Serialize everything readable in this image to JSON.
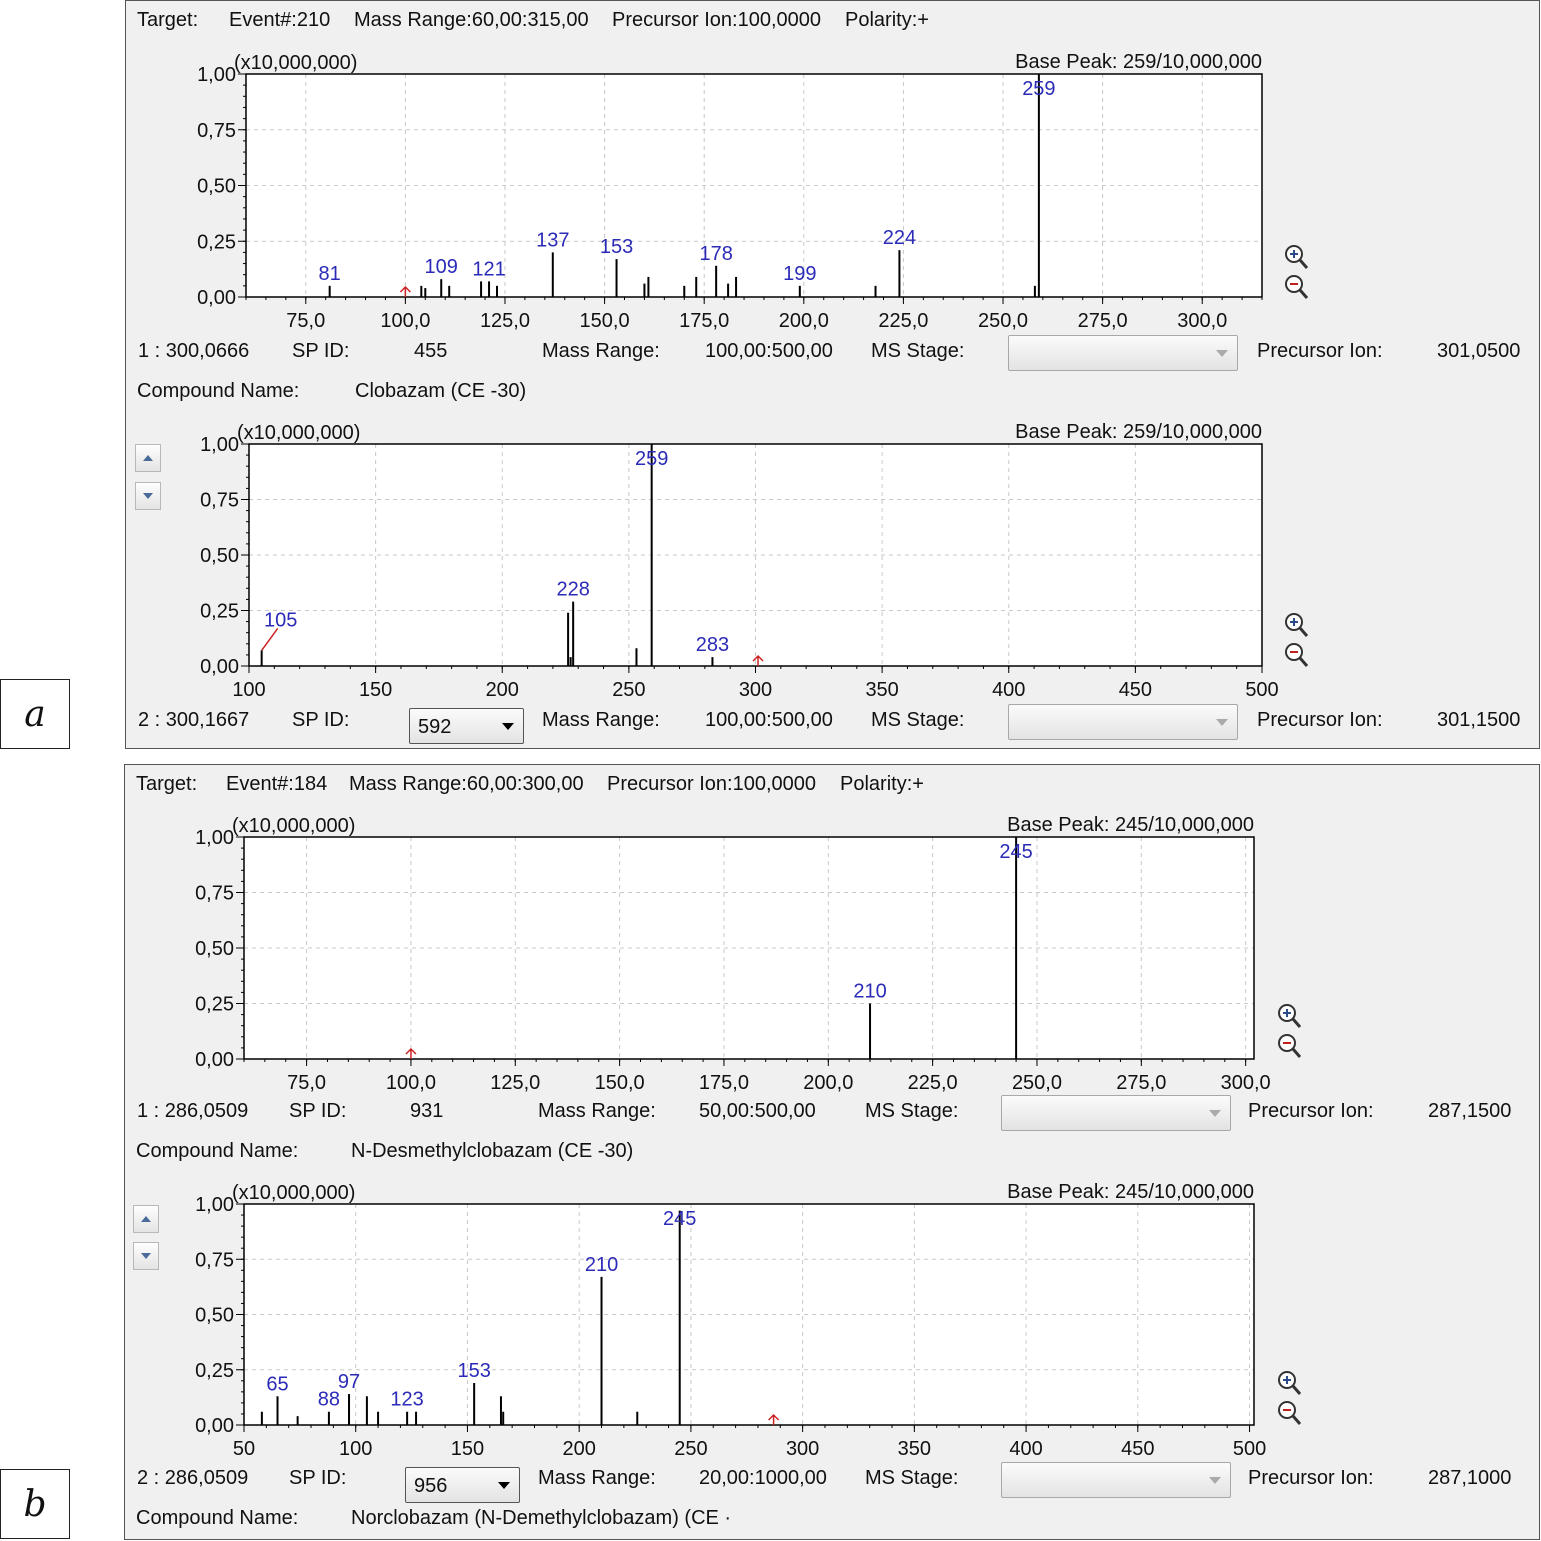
{
  "panels": [
    {
      "label": "a",
      "header": {
        "target": "Target:",
        "event": "Event#:210",
        "mass_range": "Mass Range:60,00:315,00",
        "precursor": "Precursor Ion:100,0000",
        "polarity": "Polarity:+"
      },
      "row1": {
        "index": "1 : 300,0666",
        "spid_label": "SP ID:",
        "spid": "455",
        "mr_label": "Mass Range:",
        "mr": "100,00:500,00",
        "ms_label": "MS Stage:",
        "pi_label": "Precursor Ion:",
        "pi": "301,0500"
      },
      "compound": {
        "label": "Compound Name:",
        "name": "Clobazam (CE -30)"
      },
      "row2": {
        "index": "2 : 300,1667",
        "spid_label": "SP ID:",
        "spid": "592",
        "mr_label": "Mass Range:",
        "mr": "100,00:500,00",
        "ms_label": "MS Stage:",
        "pi_label": "Precursor Ion:",
        "pi": "301,1500"
      }
    },
    {
      "label": "b",
      "header": {
        "target": "Target:",
        "event": "Event#:184",
        "mass_range": "Mass Range:60,00:300,00",
        "precursor": "Precursor Ion:100,0000",
        "polarity": "Polarity:+"
      },
      "row1": {
        "index": "1 : 286,0509",
        "spid_label": "SP ID:",
        "spid": "931",
        "mr_label": "Mass Range:",
        "mr": "50,00:500,00",
        "ms_label": "MS Stage:",
        "pi_label": "Precursor Ion:",
        "pi": "287,1500"
      },
      "compound": {
        "label": "Compound Name:",
        "name": "N-Desmethylclobazam (CE -30)"
      },
      "row2": {
        "index": "2 : 286,0509",
        "spid_label": "SP ID:",
        "spid": "956",
        "mr_label": "Mass Range:",
        "mr": "20,00:1000,00",
        "ms_label": "MS Stage:",
        "pi_label": "Precursor Ion:",
        "pi": "287,1000"
      },
      "compound2": {
        "label": "Compound Name:",
        "name": "Norclobazam (N-Demethylclobazam) (CE ·"
      }
    }
  ],
  "chart_data": [
    {
      "type": "bar",
      "scale_label": "(x10,000,000)",
      "base_peak": "Base Peak: 259/10,000,000",
      "xlim": [
        60,
        315
      ],
      "ylim": [
        0,
        1
      ],
      "xticks": [
        75,
        100,
        125,
        150,
        175,
        200,
        225,
        250,
        275,
        300
      ],
      "xtick_labels": [
        "75,0",
        "100,0",
        "125,0",
        "150,0",
        "175,0",
        "200,0",
        "225,0",
        "250,0",
        "275,0",
        "300,0"
      ],
      "yticks": [
        0,
        0.25,
        0.5,
        0.75,
        1
      ],
      "ytick_labels": [
        "0,00",
        "0,25",
        "0,50",
        "0,75",
        "1,00"
      ],
      "grid": true,
      "precursor_marker": 100,
      "peaks": [
        {
          "x": 81,
          "y": 0.05,
          "label": "81"
        },
        {
          "x": 104,
          "y": 0.05
        },
        {
          "x": 105,
          "y": 0.04
        },
        {
          "x": 109,
          "y": 0.08,
          "label": "109"
        },
        {
          "x": 111,
          "y": 0.05
        },
        {
          "x": 119,
          "y": 0.07
        },
        {
          "x": 121,
          "y": 0.07,
          "label": "121"
        },
        {
          "x": 123,
          "y": 0.05
        },
        {
          "x": 137,
          "y": 0.2,
          "label": "137"
        },
        {
          "x": 153,
          "y": 0.17,
          "label": "153"
        },
        {
          "x": 160,
          "y": 0.06
        },
        {
          "x": 161,
          "y": 0.09
        },
        {
          "x": 170,
          "y": 0.05
        },
        {
          "x": 173,
          "y": 0.09
        },
        {
          "x": 178,
          "y": 0.14,
          "label": "178"
        },
        {
          "x": 181,
          "y": 0.06
        },
        {
          "x": 183,
          "y": 0.09
        },
        {
          "x": 199,
          "y": 0.05,
          "label": "199"
        },
        {
          "x": 218,
          "y": 0.05
        },
        {
          "x": 224,
          "y": 0.21,
          "label": "224"
        },
        {
          "x": 258,
          "y": 0.05
        },
        {
          "x": 259,
          "y": 1.0,
          "label": "259"
        }
      ]
    },
    {
      "type": "bar",
      "scale_label": "(x10,000,000)",
      "base_peak": "Base Peak: 259/10,000,000",
      "xlim": [
        100,
        500
      ],
      "ylim": [
        0,
        1
      ],
      "xticks": [
        100,
        150,
        200,
        250,
        300,
        350,
        400,
        450,
        500
      ],
      "xtick_labels": [
        "100",
        "150",
        "200",
        "250",
        "300",
        "350",
        "400",
        "450",
        "500"
      ],
      "yticks": [
        0,
        0.25,
        0.5,
        0.75,
        1
      ],
      "ytick_labels": [
        "0,00",
        "0,25",
        "0,50",
        "0,75",
        "1,00"
      ],
      "grid": true,
      "precursor_marker": 301,
      "peaks": [
        {
          "x": 105,
          "y": 0.07,
          "label": "105",
          "leader": true
        },
        {
          "x": 226,
          "y": 0.24
        },
        {
          "x": 227,
          "y": 0.04
        },
        {
          "x": 228,
          "y": 0.29,
          "label": "228"
        },
        {
          "x": 253,
          "y": 0.08
        },
        {
          "x": 259,
          "y": 1.0,
          "label": "259"
        },
        {
          "x": 283,
          "y": 0.04,
          "label": "283"
        }
      ]
    },
    {
      "type": "bar",
      "scale_label": "(x10,000,000)",
      "base_peak": "Base Peak: 245/10,000,000",
      "xlim": [
        60,
        302
      ],
      "ylim": [
        0,
        1
      ],
      "xticks": [
        75,
        100,
        125,
        150,
        175,
        200,
        225,
        250,
        275,
        300
      ],
      "xtick_labels": [
        "75,0",
        "100,0",
        "125,0",
        "150,0",
        "175,0",
        "200,0",
        "225,0",
        "250,0",
        "275,0",
        "300,0"
      ],
      "yticks": [
        0,
        0.25,
        0.5,
        0.75,
        1
      ],
      "ytick_labels": [
        "0,00",
        "0,25",
        "0,50",
        "0,75",
        "1,00"
      ],
      "grid": true,
      "precursor_marker": 100,
      "peaks": [
        {
          "x": 210,
          "y": 0.25,
          "label": "210"
        },
        {
          "x": 245,
          "y": 1.0,
          "label": "245"
        }
      ]
    },
    {
      "type": "bar",
      "scale_label": "(x10,000,000)",
      "base_peak": "Base Peak: 245/10,000,000",
      "xlim": [
        50,
        502
      ],
      "ylim": [
        0,
        1
      ],
      "xticks": [
        50,
        100,
        150,
        200,
        250,
        300,
        350,
        400,
        450,
        500
      ],
      "xtick_labels": [
        "50",
        "100",
        "150",
        "200",
        "250",
        "300",
        "350",
        "400",
        "450",
        "500"
      ],
      "yticks": [
        0,
        0.25,
        0.5,
        0.75,
        1
      ],
      "ytick_labels": [
        "0,00",
        "0,25",
        "0,50",
        "0,75",
        "1,00"
      ],
      "grid": true,
      "precursor_marker": 287,
      "peaks": [
        {
          "x": 58,
          "y": 0.06
        },
        {
          "x": 65,
          "y": 0.13,
          "label": "65"
        },
        {
          "x": 74,
          "y": 0.04
        },
        {
          "x": 88,
          "y": 0.06,
          "label": "88"
        },
        {
          "x": 97,
          "y": 0.14,
          "label": "97"
        },
        {
          "x": 105,
          "y": 0.13
        },
        {
          "x": 110,
          "y": 0.06
        },
        {
          "x": 123,
          "y": 0.06,
          "label": "123"
        },
        {
          "x": 127,
          "y": 0.06
        },
        {
          "x": 153,
          "y": 0.19,
          "label": "153"
        },
        {
          "x": 165,
          "y": 0.13
        },
        {
          "x": 166,
          "y": 0.06
        },
        {
          "x": 210,
          "y": 0.67,
          "label": "210"
        },
        {
          "x": 226,
          "y": 0.06
        },
        {
          "x": 245,
          "y": 0.97,
          "label": "245"
        }
      ]
    }
  ]
}
